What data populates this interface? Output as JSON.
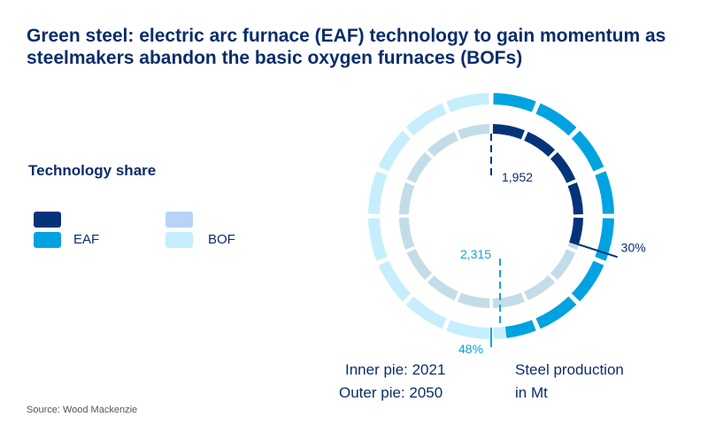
{
  "title": "Green steel: electric arc furnace (EAF) technology to gain momentum as steelmakers abandon the basic oxygen furnaces (BOFs)",
  "legend": {
    "title": "Technology share",
    "items": [
      {
        "label": "",
        "color": "#04337a"
      },
      {
        "label": "EAF",
        "color": "#00a3e0"
      },
      {
        "label": "",
        "color": "#b8d3f7"
      },
      {
        "label": "BOF",
        "color": "#c6eefc"
      }
    ]
  },
  "source": "Source: Wood Mackenzie",
  "notes": {
    "inner": "Inner pie: 2021",
    "outer": "Outer pie: 2050",
    "unit_line1": "Steel production",
    "unit_line2": "in Mt"
  },
  "chart_data": {
    "type": "pie",
    "series": [
      {
        "name": "Inner pie: 2021",
        "total_label": "1,952",
        "total": 1952,
        "slices": [
          {
            "label": "EAF",
            "value": 30,
            "value_label": "30%",
            "color": "#04337a"
          },
          {
            "label": "BOF",
            "value": 70,
            "color": "#c3dde8"
          }
        ]
      },
      {
        "name": "Outer pie: 2050",
        "total_label": "2,315",
        "total": 2315,
        "slices": [
          {
            "label": "EAF",
            "value": 48,
            "value_label": "48%",
            "color": "#00a3e0"
          },
          {
            "label": "BOF",
            "value": 52,
            "color": "#c6eefc"
          }
        ]
      }
    ],
    "unit": "Steel production in Mt"
  }
}
